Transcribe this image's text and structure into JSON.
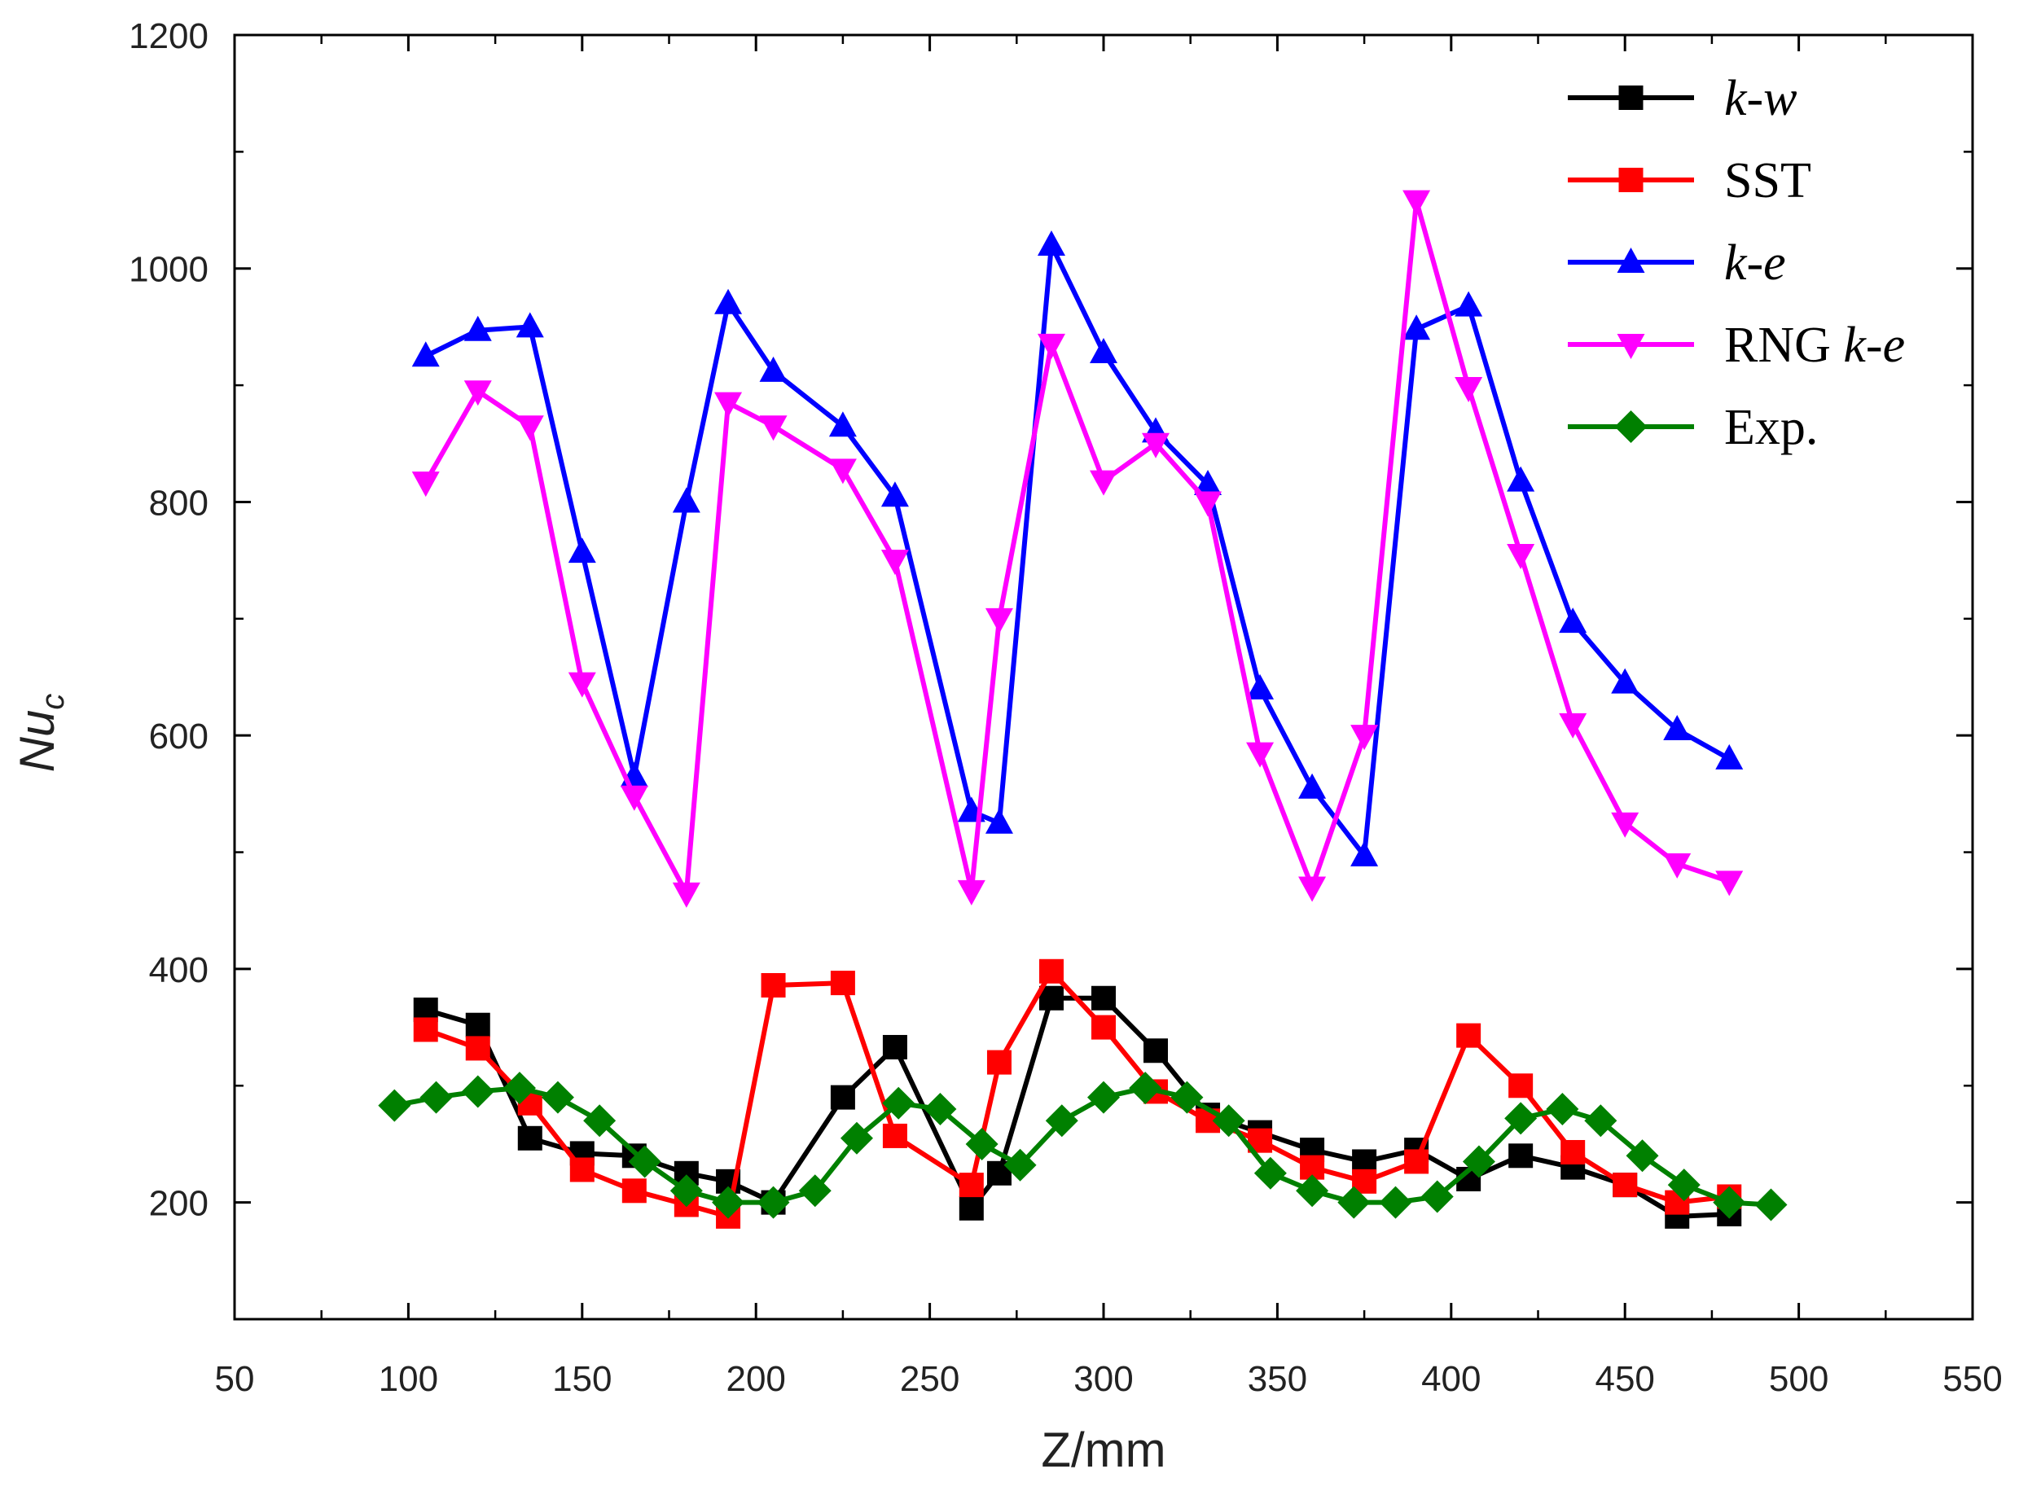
{
  "chart_data": {
    "type": "line",
    "title": "",
    "xlabel": "Z/mm",
    "ylabel_main": "Nu",
    "ylabel_sub": "c",
    "xlim": [
      50,
      550
    ],
    "ylim": [
      100,
      1200
    ],
    "x_ticks": [
      50,
      100,
      150,
      200,
      250,
      300,
      350,
      400,
      450,
      500,
      550
    ],
    "x_tick_labels": [
      "50",
      "100",
      "150",
      "200",
      "250",
      "300",
      "350",
      "400",
      "450",
      "500",
      "550"
    ],
    "y_ticks": [
      200,
      400,
      600,
      800,
      1000,
      1200
    ],
    "y_tick_labels": [
      "200",
      "400",
      "600",
      "800",
      "1000",
      "1200"
    ],
    "legend_position": "top-right",
    "series": [
      {
        "name": "k-w",
        "legend_parts": [
          {
            "text": "k-w",
            "italic": true
          }
        ],
        "color": "#000000",
        "marker": "square",
        "x": [
          105,
          120,
          135,
          150,
          165,
          180,
          192,
          205,
          225,
          240,
          262,
          270,
          285,
          300,
          315,
          330,
          345,
          360,
          375,
          390,
          405,
          420,
          435,
          450,
          465,
          480
        ],
        "y": [
          365,
          352,
          255,
          242,
          240,
          225,
          218,
          200,
          290,
          333,
          195,
          225,
          375,
          375,
          330,
          275,
          260,
          245,
          235,
          245,
          220,
          240,
          230,
          215,
          188,
          190
        ]
      },
      {
        "name": "SST",
        "legend_parts": [
          {
            "text": "SST",
            "italic": false
          }
        ],
        "color": "#ff0000",
        "marker": "square",
        "x": [
          105,
          120,
          135,
          150,
          165,
          180,
          192,
          205,
          225,
          240,
          262,
          270,
          285,
          300,
          315,
          330,
          345,
          360,
          375,
          390,
          405,
          420,
          435,
          450,
          465,
          480
        ],
        "y": [
          348,
          332,
          285,
          228,
          210,
          198,
          188,
          386,
          388,
          257,
          215,
          320,
          398,
          350,
          295,
          270,
          253,
          230,
          218,
          235,
          343,
          300,
          243,
          215,
          200,
          205
        ]
      },
      {
        "name": "k-e",
        "legend_parts": [
          {
            "text": "k-e",
            "italic": true
          }
        ],
        "color": "#0000ff",
        "marker": "triangle-up",
        "x": [
          105,
          120,
          135,
          150,
          165,
          180,
          192,
          205,
          225,
          240,
          262,
          270,
          285,
          300,
          315,
          330,
          345,
          360,
          375,
          390,
          405,
          420,
          435,
          450,
          465,
          480
        ],
        "y": [
          925,
          947,
          950,
          757,
          565,
          800,
          970,
          912,
          865,
          805,
          535,
          525,
          1020,
          928,
          860,
          815,
          640,
          555,
          497,
          948,
          968,
          818,
          697,
          645,
          605,
          580
        ]
      },
      {
        "name": "RNG k-e",
        "legend_parts": [
          {
            "text": "RNG ",
            "italic": false
          },
          {
            "text": "k-e",
            "italic": true
          }
        ],
        "color": "#ff00ff",
        "marker": "triangle-down",
        "x": [
          105,
          120,
          135,
          150,
          165,
          180,
          192,
          205,
          225,
          240,
          262,
          270,
          285,
          300,
          315,
          330,
          345,
          360,
          375,
          390,
          405,
          420,
          435,
          450,
          465,
          480
        ],
        "y": [
          817,
          895,
          865,
          645,
          548,
          465,
          885,
          865,
          828,
          750,
          467,
          700,
          935,
          818,
          850,
          800,
          585,
          470,
          600,
          1058,
          898,
          755,
          610,
          525,
          490,
          475
        ]
      },
      {
        "name": "Exp.",
        "legend_parts": [
          {
            "text": "Exp.",
            "italic": false
          }
        ],
        "color": "#008000",
        "marker": "diamond",
        "x": [
          96,
          108,
          120,
          132,
          143,
          155,
          168,
          180,
          192,
          205,
          217,
          229,
          241,
          253,
          265,
          276,
          288,
          300,
          312,
          324,
          336,
          348,
          360,
          372,
          384,
          396,
          408,
          420,
          432,
          443,
          455,
          467,
          480,
          492
        ],
        "y": [
          283,
          290,
          295,
          298,
          290,
          270,
          235,
          210,
          200,
          200,
          210,
          255,
          285,
          280,
          250,
          232,
          270,
          290,
          298,
          290,
          270,
          225,
          210,
          200,
          200,
          205,
          235,
          272,
          280,
          270,
          240,
          215,
          200,
          198
        ]
      }
    ]
  }
}
